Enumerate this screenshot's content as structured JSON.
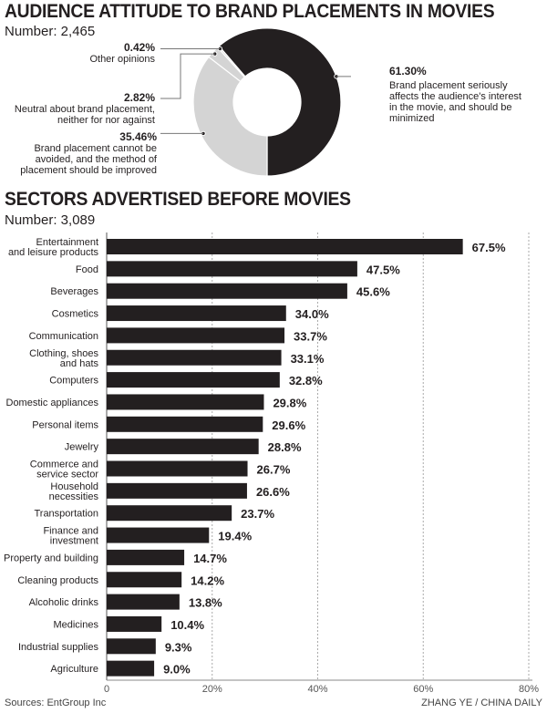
{
  "chart_data": [
    {
      "type": "pie",
      "title": "AUDIENCE ATTITUDE TO BRAND PLACEMENTS IN MOVIES",
      "subtitle": "Number: 2,465",
      "donut": true,
      "slices": [
        {
          "value": 61.3,
          "label": "61.30%",
          "text": "Brand placement seriously affects the audience's interest in the movie, and should be minimized",
          "color": "#231f20"
        },
        {
          "value": 0.42,
          "label": "0.42%",
          "text": "Other opinions",
          "color": "#d4d4d4"
        },
        {
          "value": 2.82,
          "label": "2.82%",
          "text": "Neutral about brand placement, neither for nor against",
          "color": "#d4d4d4"
        },
        {
          "value": 35.46,
          "label": "35.46%",
          "text": "Brand placement cannot be avoided, and the method of placement should be improved",
          "color": "#d4d4d4"
        }
      ]
    },
    {
      "type": "bar",
      "orientation": "horizontal",
      "title": "SECTORS ADVERTISED BEFORE MOVIES",
      "subtitle": "Number: 3,089",
      "categories": [
        "Entertainment and leisure products",
        "Food",
        "Beverages",
        "Cosmetics",
        "Communication",
        "Clothing, shoes and hats",
        "Computers",
        "Domestic appliances",
        "Personal items",
        "Jewelry",
        "Commerce and service sector",
        "Household necessities",
        "Transportation",
        "Finance and investment",
        "Property and building",
        "Cleaning products",
        "Alcoholic drinks",
        "Medicines",
        "Industrial supplies",
        "Agriculture"
      ],
      "category_lines": [
        [
          "Entertainment",
          "and leisure products"
        ],
        [
          "Food"
        ],
        [
          "Beverages"
        ],
        [
          "Cosmetics"
        ],
        [
          "Communication"
        ],
        [
          "Clothing, shoes",
          "and hats"
        ],
        [
          "Computers"
        ],
        [
          "Domestic appliances"
        ],
        [
          "Personal items"
        ],
        [
          "Jewelry"
        ],
        [
          "Commerce and",
          "service sector"
        ],
        [
          "Household",
          "necessities"
        ],
        [
          "Transportation"
        ],
        [
          "Finance and",
          "investment"
        ],
        [
          "Property and building"
        ],
        [
          "Cleaning products"
        ],
        [
          "Alcoholic drinks"
        ],
        [
          "Medicines"
        ],
        [
          "Industrial supplies"
        ],
        [
          "Agriculture"
        ]
      ],
      "values": [
        67.5,
        47.5,
        45.6,
        34.0,
        33.7,
        33.1,
        32.8,
        29.8,
        29.6,
        28.8,
        26.7,
        26.6,
        23.7,
        19.4,
        14.7,
        14.2,
        13.8,
        10.4,
        9.3,
        9.0
      ],
      "value_labels": [
        "67.5%",
        "47.5%",
        "45.6%",
        "34.0%",
        "33.7%",
        "33.1%",
        "32.8%",
        "29.8%",
        "29.6%",
        "28.8%",
        "26.7%",
        "26.6%",
        "23.7%",
        "19.4%",
        "14.7%",
        "14.2%",
        "13.8%",
        "10.4%",
        "9.3%",
        "9.0%"
      ],
      "xlim": [
        0,
        80
      ],
      "xticks": [
        0,
        20,
        40,
        60,
        80
      ],
      "xtick_labels": [
        "0",
        "20%",
        "40%",
        "60%",
        "80%"
      ],
      "grid": "vertical dashed",
      "bar_color": "#231f20"
    }
  ],
  "footer": {
    "source": "Sources: EntGroup Inc",
    "credit": "ZHANG YE / CHINA DAILY"
  }
}
